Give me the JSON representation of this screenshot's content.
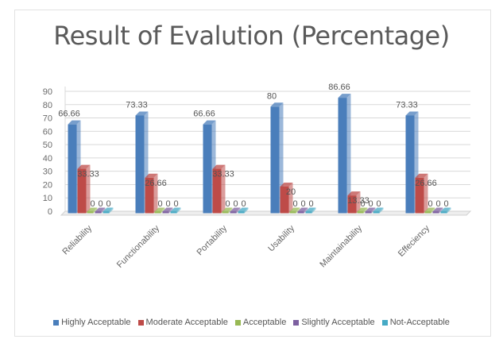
{
  "chart_data": {
    "type": "bar",
    "title": "Result of Evalution (Percentage)",
    "xlabel": "",
    "ylabel": "",
    "ylim": [
      0,
      90
    ],
    "yticks": [
      0,
      10,
      20,
      30,
      40,
      50,
      60,
      70,
      80,
      90
    ],
    "grid": true,
    "legend_position": "bottom",
    "categories": [
      "Reliability",
      "Functionability",
      "Portability",
      "Usability",
      "Maintainability",
      "Effeciency"
    ],
    "series": [
      {
        "name": "Highly Acceptable",
        "color": "#4a7ebb",
        "values": [
          66.66,
          73.33,
          66.66,
          80,
          86.66,
          73.33
        ],
        "labels": [
          "66.66",
          "73.33",
          "66.66",
          "80",
          "86.66",
          "73.33"
        ]
      },
      {
        "name": "Moderate Acceptable",
        "color": "#be4b48",
        "values": [
          33.33,
          26.66,
          33.33,
          20,
          13.33,
          26.66
        ],
        "labels": [
          "33.33",
          "26.66",
          "33.33",
          "20",
          "13.33",
          "26.66"
        ]
      },
      {
        "name": "Acceptable",
        "color": "#98b954",
        "values": [
          0,
          0,
          0,
          0,
          0,
          0
        ],
        "labels": [
          "0",
          "0",
          "0",
          "0",
          "0",
          "0"
        ]
      },
      {
        "name": "Slightly Acceptable",
        "color": "#7d60a0",
        "values": [
          0,
          0,
          0,
          0,
          0,
          0
        ],
        "labels": [
          "0",
          "0",
          "0",
          "0",
          "0",
          "0"
        ]
      },
      {
        "name": "Not-Acceptable",
        "color": "#46aac5",
        "values": [
          0,
          0,
          0,
          0,
          0,
          0
        ],
        "labels": [
          "0",
          "0",
          "0",
          "0",
          "0",
          "0"
        ]
      }
    ]
  }
}
